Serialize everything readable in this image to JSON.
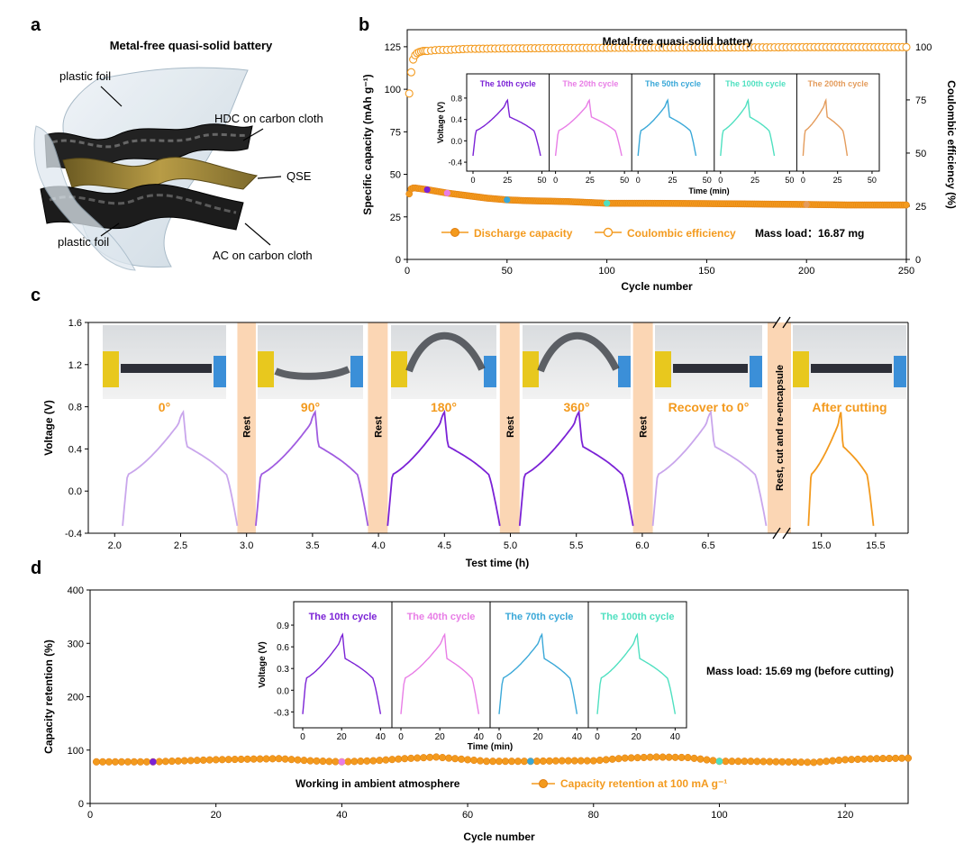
{
  "colors": {
    "orange": "#f39a1e",
    "orange_dark": "#e07b0c",
    "purple": "#7b22d6",
    "pink": "#e87de6",
    "blue": "#3aa8d8",
    "cyan": "#4fe0c0",
    "peach": "#e49c5c",
    "rest_band": "#fbd6b4",
    "light_purple": "#c9a6ec",
    "mid_purple": "#a05ce0"
  },
  "panels": {
    "a": {
      "letter": "a",
      "title": "Metal-free quasi-solid battery",
      "labels": [
        "plastic foil",
        "HDC on carbon cloth",
        "QSE",
        "plastic foil",
        "AC on carbon cloth"
      ]
    },
    "b": {
      "letter": "b",
      "title": "Metal-free quasi-solid battery",
      "legend": [
        "Discharge capacity",
        "Coulombic efficiency"
      ],
      "mass_load": "Mass load：16.87 mg"
    },
    "c": {
      "letter": "c",
      "photo_labels": [
        "0°",
        "90°",
        "180°",
        "360°",
        "Recover to 0°",
        "After cutting"
      ],
      "rest_labels": [
        "Rest",
        "Rest",
        "Rest",
        "Rest"
      ],
      "cut_label": "Rest, cut and re-encapsule"
    },
    "d": {
      "letter": "d",
      "mass_load": "Mass load: 15.69 mg (before cutting)",
      "ambient": "Working in ambient atmosphere",
      "legend": "Capacity retention at 100 mA g⁻¹"
    }
  },
  "chart_data": [
    {
      "id": "b",
      "type": "scatter",
      "xlabel": "Cycle number",
      "ylabel": "Specific capacity (mAh g⁻¹)",
      "y2label": "Coulombic efficiency (%)",
      "xlim": [
        0,
        250
      ],
      "ylim": [
        0,
        135
      ],
      "y2lim": [
        0,
        108
      ],
      "xticks": [
        0,
        50,
        100,
        150,
        200,
        250
      ],
      "yticks": [
        0,
        25,
        50,
        75,
        100,
        125
      ],
      "y2ticks": [
        0,
        25,
        50,
        75,
        100
      ],
      "series": [
        {
          "name": "Discharge capacity",
          "x": [
            1,
            2,
            3,
            4,
            5,
            7,
            10,
            15,
            20,
            30,
            40,
            50,
            60,
            80,
            100,
            120,
            150,
            180,
            200,
            220,
            250
          ],
          "values": [
            38.5,
            41.5,
            42,
            42,
            41.8,
            41.5,
            41,
            40,
            39,
            37.5,
            36,
            35,
            34.5,
            34,
            33,
            33,
            32.8,
            32.5,
            32.3,
            32,
            32
          ]
        },
        {
          "name": "Coulombic efficiency",
          "x": [
            1,
            2,
            3,
            4,
            5,
            6,
            8,
            10,
            15,
            20,
            30,
            50,
            80,
            100,
            150,
            200,
            250
          ],
          "values": [
            78,
            88,
            94,
            96,
            97,
            97.5,
            98,
            98,
            98.5,
            98.5,
            99,
            99.2,
            99.4,
            99.5,
            99.6,
            99.8,
            99.8
          ]
        }
      ],
      "inset": {
        "type": "line",
        "ylabel": "Voltage (V)",
        "xlabel": "Time (min)",
        "ylim": [
          -0.5,
          0.95
        ],
        "yticks": [
          -0.4,
          0.0,
          0.4,
          0.8
        ],
        "xticks": [
          0,
          25,
          50
        ],
        "series": [
          {
            "name": "The 10th cycle",
            "half": 25
          },
          {
            "name": "The 20th cycle",
            "half": 24.5
          },
          {
            "name": "The 50th cycle",
            "half": 21.5
          },
          {
            "name": "The 100th cycle",
            "half": 20
          },
          {
            "name": "The 200th cycle",
            "half": 16.5
          }
        ]
      }
    },
    {
      "id": "c",
      "type": "line",
      "xlabel": "Test time (h)",
      "ylabel": "Voltage (V)",
      "ylim": [
        -0.4,
        1.6
      ],
      "yticks": [
        -0.4,
        0.0,
        0.4,
        0.8,
        1.2,
        1.6
      ],
      "xticks_left": [
        "2.0",
        "2.5",
        "3.0",
        "3.5",
        "4.0",
        "4.5",
        "5.0",
        "5.5",
        "6.0",
        "6.5"
      ],
      "xticks_right": [
        "15.0",
        "15.5"
      ],
      "segments": [
        {
          "name": "0°",
          "t_start": 2.06,
          "t_peak": 2.52,
          "t_end": 2.93
        },
        {
          "name": "90°",
          "t_start": 3.07,
          "t_peak": 3.52,
          "t_end": 3.92
        },
        {
          "name": "180°",
          "t_start": 4.07,
          "t_peak": 4.5,
          "t_end": 4.92
        },
        {
          "name": "360°",
          "t_start": 5.07,
          "t_peak": 5.52,
          "t_end": 5.93
        },
        {
          "name": "Recover to 0°",
          "t_start": 6.08,
          "t_peak": 6.52,
          "t_end": 6.94
        },
        {
          "name": "After cutting",
          "t_start": 14.88,
          "t_peak": 15.18,
          "t_end": 15.48
        }
      ]
    },
    {
      "id": "d",
      "type": "scatter",
      "xlabel": "Cycle number",
      "ylabel": "Capacity retention (%)",
      "xlim": [
        0,
        130
      ],
      "ylim": [
        0,
        400
      ],
      "xticks": [
        0,
        20,
        40,
        60,
        80,
        100,
        120
      ],
      "yticks": [
        0,
        100,
        200,
        300,
        400
      ],
      "series": [
        {
          "name": "Capacity retention at 100 mA g⁻¹",
          "x": [
            1,
            10,
            20,
            30,
            35,
            40,
            45,
            50,
            55,
            60,
            63,
            70,
            75,
            80,
            85,
            90,
            95,
            100,
            105,
            110,
            115,
            120,
            125,
            130
          ],
          "values": [
            78,
            78,
            82,
            84,
            80,
            78,
            80,
            84,
            87,
            82,
            79,
            79,
            80,
            80,
            85,
            87,
            86,
            79,
            79,
            78,
            77,
            82,
            84,
            85
          ]
        }
      ],
      "inset": {
        "type": "line",
        "ylabel": "Voltage (V)",
        "xlabel": "Time (min)",
        "ylim": [
          -0.42,
          1.0
        ],
        "yticks": [
          -0.3,
          0.0,
          0.3,
          0.6,
          0.9
        ],
        "xticks": [
          0,
          20,
          40
        ],
        "series": [
          {
            "name": "The 10th cycle",
            "half": 20.5
          },
          {
            "name": "The 40th cycle",
            "half": 22.5
          },
          {
            "name": "The 70th cycle",
            "half": 22
          },
          {
            "name": "The 100th cycle",
            "half": 20.5
          }
        ]
      }
    }
  ]
}
